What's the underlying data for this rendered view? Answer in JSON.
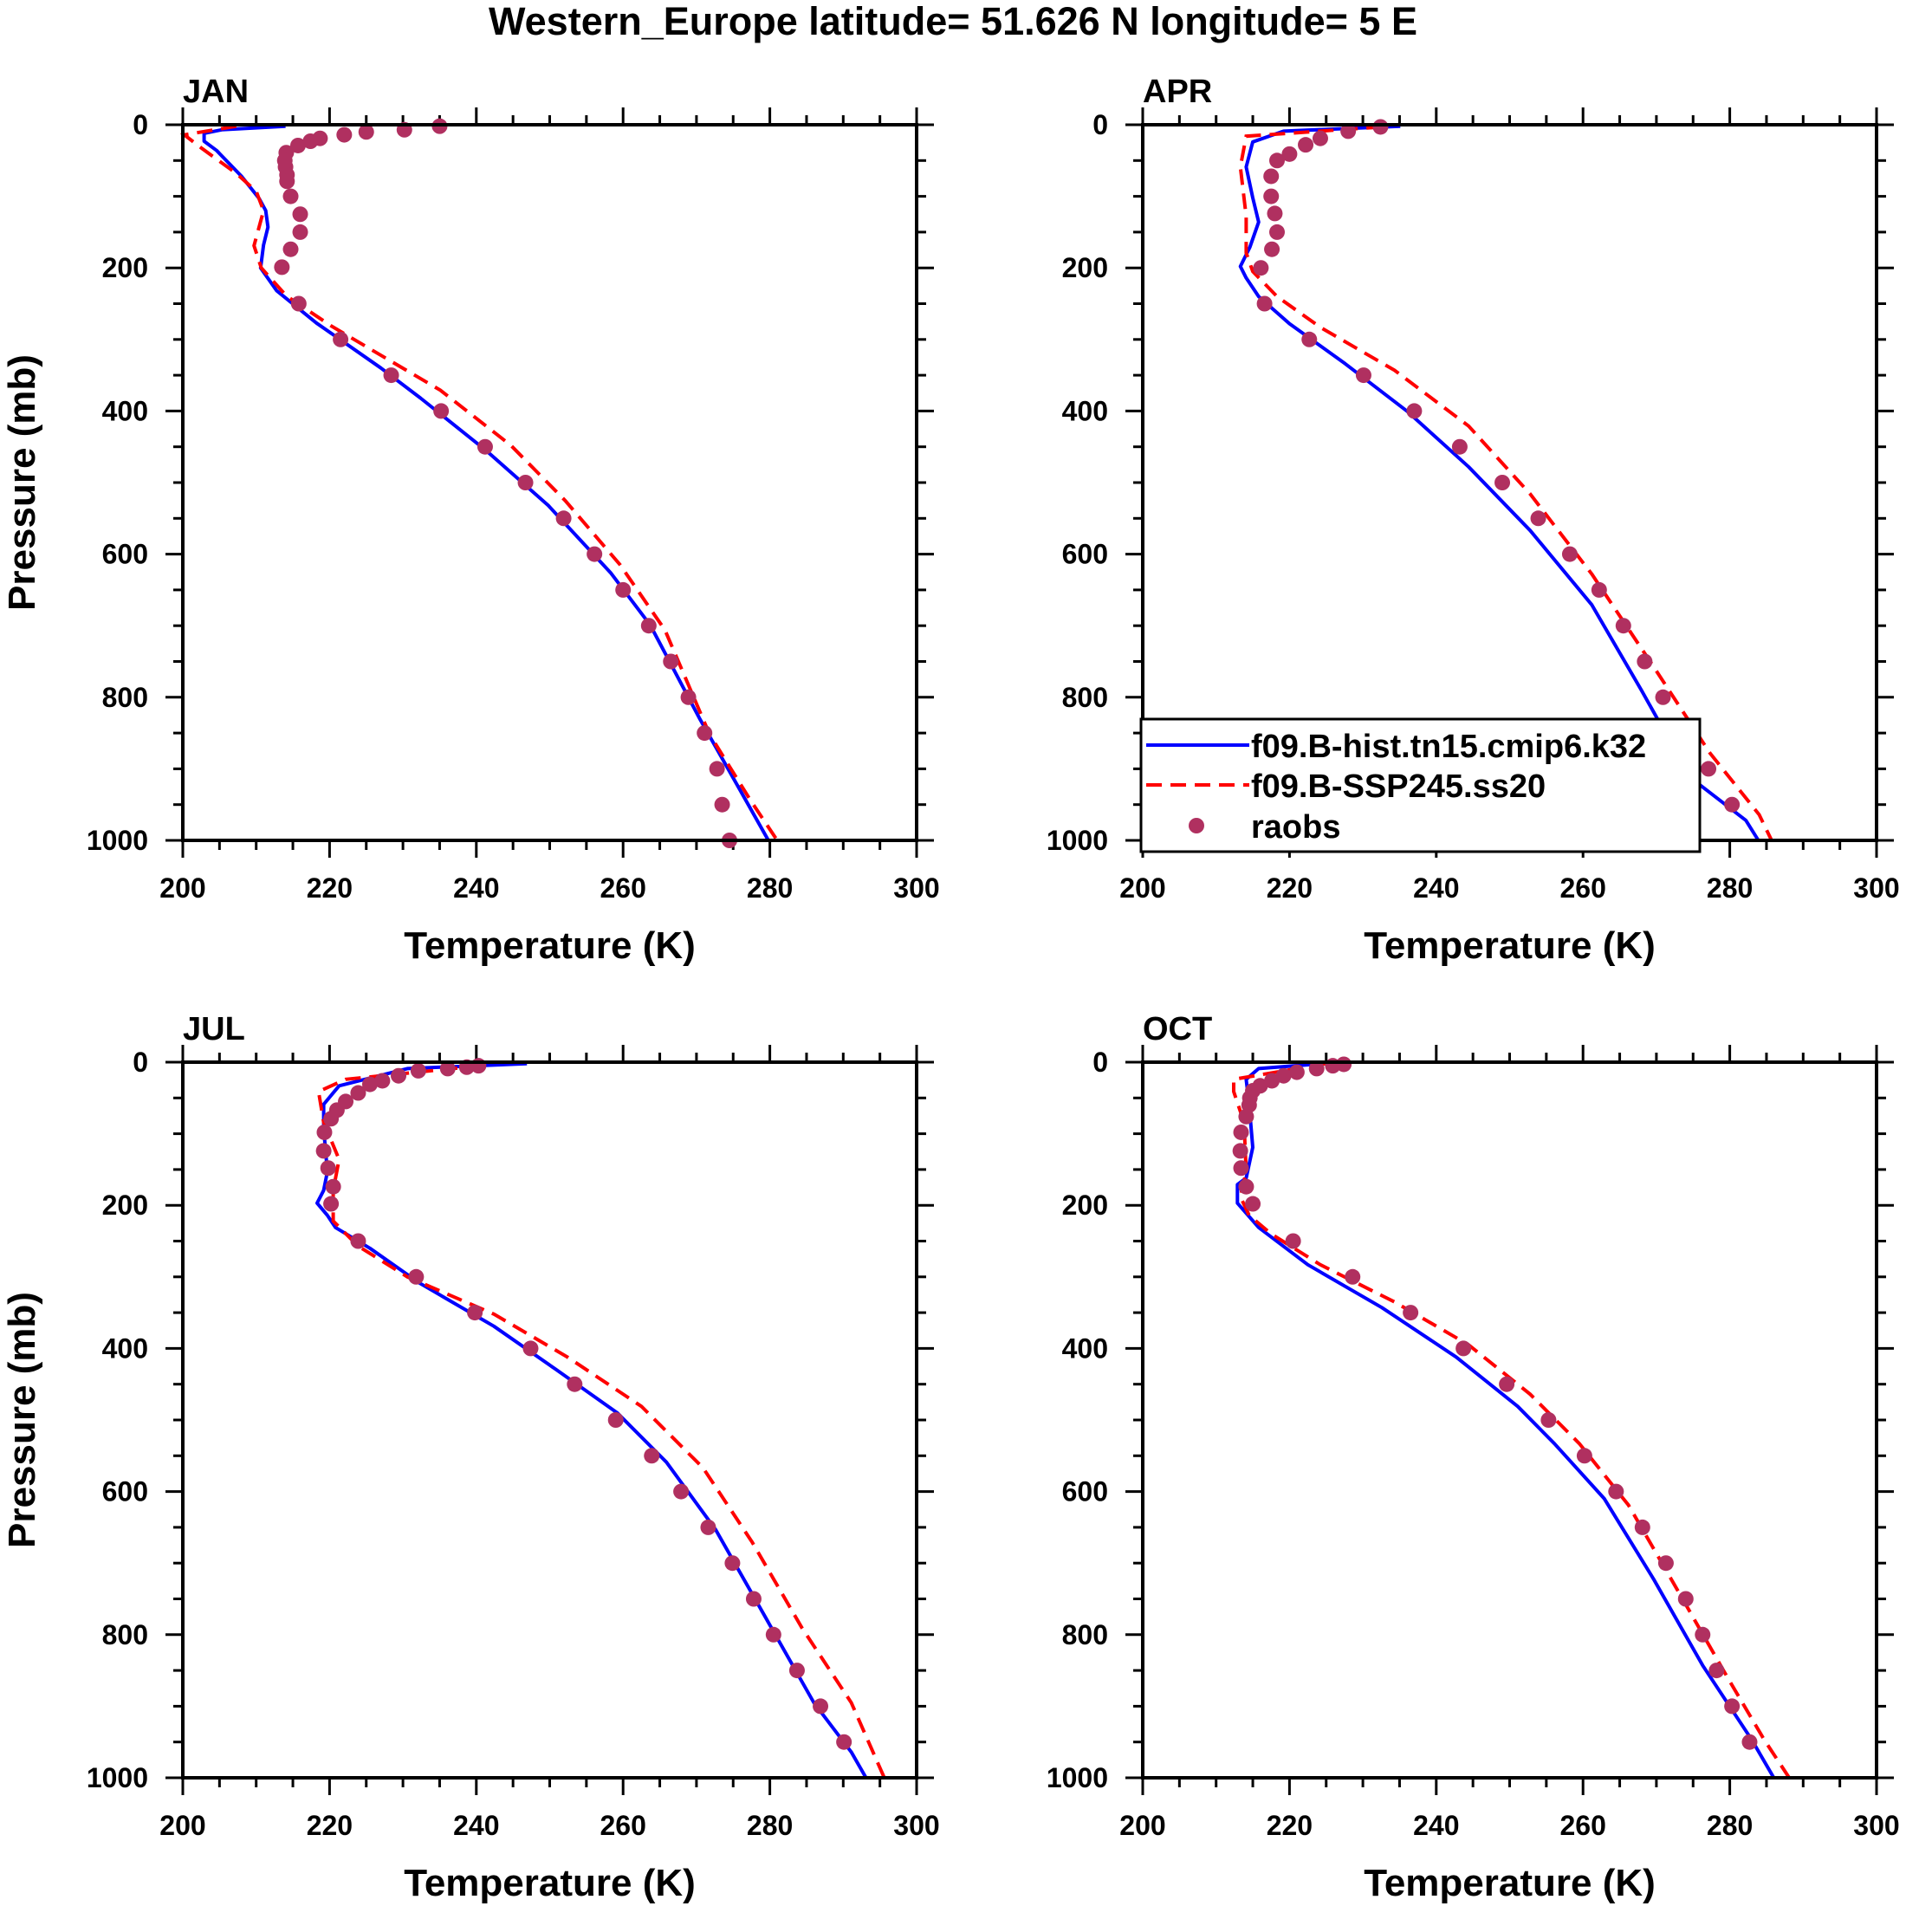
{
  "chart_data": {
    "type": "line",
    "title": "Western_Europe  latitude= 51.626 N longitude= 5 E",
    "xlabel": "Temperature (K)",
    "ylabel": "Pressure (mb)",
    "xlim": [
      200,
      300
    ],
    "ylim": [
      1000,
      0
    ],
    "xticks": [
      200,
      220,
      240,
      260,
      280,
      300
    ],
    "yticks": [
      0,
      200,
      400,
      600,
      800,
      1000
    ],
    "grid": false,
    "legend": {
      "placement": "lower-right of APR panel",
      "entries": [
        {
          "label": "f09.B-hist.tn15.cmip6.k32",
          "color": "#0000ff",
          "style": "solid"
        },
        {
          "label": "f09.B-SSP245.ss20",
          "color": "#ff0000",
          "style": "dashed"
        },
        {
          "label": "raobs",
          "color": "#b03060",
          "style": "marker"
        }
      ]
    },
    "panels": [
      {
        "name": "JAN",
        "hist": [
          [
            214,
            2
          ],
          [
            205.3,
            7
          ],
          [
            202.9,
            12
          ],
          [
            202.9,
            23
          ],
          [
            204.6,
            36
          ],
          [
            208,
            72
          ],
          [
            210.4,
            103
          ],
          [
            211.3,
            120
          ],
          [
            211.6,
            143
          ],
          [
            211,
            168
          ],
          [
            210.6,
            200
          ],
          [
            212.8,
            232
          ],
          [
            218.2,
            277
          ],
          [
            227,
            340
          ],
          [
            232.4,
            382
          ],
          [
            241.3,
            455
          ],
          [
            249.8,
            532
          ],
          [
            258.3,
            626
          ],
          [
            263.7,
            699
          ],
          [
            270.5,
            831
          ],
          [
            275.9,
            929
          ],
          [
            279.8,
            1000
          ]
        ],
        "ssp": [
          [
            207.3,
            2
          ],
          [
            200.2,
            14
          ],
          [
            202.6,
            33
          ],
          [
            207.3,
            68
          ],
          [
            210,
            93
          ],
          [
            211,
            120
          ],
          [
            209.7,
            169
          ],
          [
            210.7,
            200
          ],
          [
            214.1,
            239
          ],
          [
            220.2,
            281
          ],
          [
            228.3,
            330
          ],
          [
            235.1,
            371
          ],
          [
            244.7,
            448
          ],
          [
            252.1,
            525
          ],
          [
            259.6,
            615
          ],
          [
            265.7,
            706
          ],
          [
            271.8,
            852
          ],
          [
            277.3,
            943
          ],
          [
            281,
            1000
          ]
        ],
        "raobs": [
          [
            235,
            2
          ],
          [
            230.2,
            7
          ],
          [
            225,
            10
          ],
          [
            222,
            14
          ],
          [
            218.7,
            19
          ],
          [
            217.4,
            23
          ],
          [
            215.7,
            29
          ],
          [
            214.1,
            39
          ],
          [
            213.9,
            50
          ],
          [
            214,
            59
          ],
          [
            214.2,
            70
          ],
          [
            214.2,
            79
          ],
          [
            214.7,
            100
          ],
          [
            216,
            125
          ],
          [
            216,
            150
          ],
          [
            214.7,
            174
          ],
          [
            213.5,
            199
          ],
          [
            215.8,
            250
          ],
          [
            221.5,
            300
          ],
          [
            228.4,
            350
          ],
          [
            235.2,
            400
          ],
          [
            241.2,
            450
          ],
          [
            246.7,
            500
          ],
          [
            251.9,
            550
          ],
          [
            256.1,
            600
          ],
          [
            260,
            650
          ],
          [
            263.5,
            700
          ],
          [
            266.5,
            750
          ],
          [
            268.9,
            800
          ],
          [
            271.1,
            850
          ],
          [
            272.8,
            900
          ],
          [
            273.5,
            950
          ],
          [
            274.5,
            1000
          ]
        ]
      },
      {
        "name": "APR",
        "hist": [
          [
            235.1,
            2
          ],
          [
            219.2,
            9
          ],
          [
            215,
            24
          ],
          [
            214.1,
            59
          ],
          [
            215,
            102
          ],
          [
            215.8,
            136
          ],
          [
            214.6,
            171
          ],
          [
            213.3,
            198
          ],
          [
            214.1,
            214
          ],
          [
            215.8,
            240
          ],
          [
            220,
            278
          ],
          [
            227.6,
            334
          ],
          [
            236,
            400
          ],
          [
            244.4,
            478
          ],
          [
            252.8,
            567
          ],
          [
            261.2,
            671
          ],
          [
            268,
            791
          ],
          [
            274.6,
            912
          ],
          [
            282.2,
            972
          ],
          [
            283.9,
            1000
          ]
        ],
        "ssp": [
          [
            232.6,
            3
          ],
          [
            214.1,
            16
          ],
          [
            213.3,
            59
          ],
          [
            214.1,
            128
          ],
          [
            214.1,
            179
          ],
          [
            215,
            205
          ],
          [
            218.3,
            240
          ],
          [
            224.2,
            283
          ],
          [
            234.3,
            343
          ],
          [
            244.4,
            421
          ],
          [
            252.8,
            516
          ],
          [
            261.2,
            628
          ],
          [
            269.6,
            757
          ],
          [
            277.3,
            878
          ],
          [
            284,
            964
          ],
          [
            285.7,
            1000
          ]
        ],
        "raobs": [
          [
            232.4,
            3
          ],
          [
            228,
            9
          ],
          [
            224.2,
            19
          ],
          [
            222.2,
            28
          ],
          [
            220,
            41
          ],
          [
            218.3,
            50
          ],
          [
            217.5,
            72
          ],
          [
            217.5,
            100
          ],
          [
            218,
            124
          ],
          [
            218.3,
            150
          ],
          [
            217.6,
            174
          ],
          [
            216.1,
            200
          ],
          [
            216.6,
            250
          ],
          [
            222.7,
            300
          ],
          [
            230.1,
            350
          ],
          [
            237,
            400
          ],
          [
            243.2,
            450
          ],
          [
            249,
            500
          ],
          [
            253.9,
            550
          ],
          [
            258.2,
            600
          ],
          [
            262.2,
            650
          ],
          [
            265.5,
            700
          ],
          [
            268.4,
            750
          ],
          [
            270.9,
            800
          ],
          [
            273.4,
            850
          ],
          [
            277.1,
            900
          ],
          [
            280.3,
            950
          ]
        ]
      },
      {
        "name": "JUL",
        "hist": [
          [
            246.9,
            2
          ],
          [
            230.6,
            9
          ],
          [
            221.3,
            33
          ],
          [
            219.2,
            59
          ],
          [
            219.2,
            93
          ],
          [
            219.7,
            153
          ],
          [
            219.2,
            179
          ],
          [
            218.3,
            197
          ],
          [
            219.7,
            214
          ],
          [
            220.8,
            231
          ],
          [
            225.5,
            260
          ],
          [
            232.3,
            309
          ],
          [
            242.4,
            369
          ],
          [
            250.8,
            429
          ],
          [
            259.2,
            490
          ],
          [
            265.9,
            559
          ],
          [
            272.6,
            653
          ],
          [
            279.3,
            774
          ],
          [
            286,
            895
          ],
          [
            291.1,
            964
          ],
          [
            293.1,
            1000
          ]
        ],
        "ssp": [
          [
            240.7,
            5
          ],
          [
            222.2,
            24
          ],
          [
            218.5,
            41
          ],
          [
            219.2,
            84
          ],
          [
            221.3,
            136
          ],
          [
            220.5,
            179
          ],
          [
            220.5,
            222
          ],
          [
            223.9,
            257
          ],
          [
            230.6,
            300
          ],
          [
            242.4,
            352
          ],
          [
            252.4,
            412
          ],
          [
            262.5,
            481
          ],
          [
            270.9,
            567
          ],
          [
            277.6,
            671
          ],
          [
            284.4,
            791
          ],
          [
            291.1,
            895
          ],
          [
            295.6,
            1000
          ]
        ],
        "raobs": [
          [
            240.3,
            5
          ],
          [
            238.7,
            7
          ],
          [
            236.1,
            9
          ],
          [
            232.1,
            12
          ],
          [
            229.4,
            19
          ],
          [
            227.2,
            26
          ],
          [
            225.5,
            31
          ],
          [
            223.9,
            43
          ],
          [
            222.2,
            55
          ],
          [
            221,
            67
          ],
          [
            220.2,
            79
          ],
          [
            219.3,
            98
          ],
          [
            219.2,
            124
          ],
          [
            219.8,
            148
          ],
          [
            220.5,
            174
          ],
          [
            220.2,
            198
          ],
          [
            223.9,
            250
          ],
          [
            231.8,
            300
          ],
          [
            239.8,
            350
          ],
          [
            247.4,
            400
          ],
          [
            253.4,
            450
          ],
          [
            259,
            500
          ],
          [
            263.9,
            550
          ],
          [
            267.9,
            600
          ],
          [
            271.6,
            650
          ],
          [
            274.9,
            700
          ],
          [
            277.8,
            750
          ],
          [
            280.5,
            800
          ],
          [
            283.7,
            850
          ],
          [
            286.9,
            900
          ],
          [
            290.1,
            950
          ]
        ]
      },
      {
        "name": "OCT",
        "hist": [
          [
            224.5,
            2
          ],
          [
            215.8,
            9
          ],
          [
            214.1,
            24
          ],
          [
            214.5,
            59
          ],
          [
            215,
            119
          ],
          [
            214.1,
            162
          ],
          [
            212.9,
            171
          ],
          [
            212.9,
            197
          ],
          [
            215.8,
            231
          ],
          [
            222.5,
            283
          ],
          [
            232.6,
            343
          ],
          [
            242.7,
            412
          ],
          [
            251.1,
            481
          ],
          [
            256.1,
            533
          ],
          [
            262.9,
            610
          ],
          [
            269.6,
            722
          ],
          [
            276.3,
            843
          ],
          [
            283,
            947
          ],
          [
            286,
            1000
          ]
        ],
        "ssp": [
          [
            225,
            2
          ],
          [
            212.4,
            24
          ],
          [
            212.4,
            41
          ],
          [
            213.8,
            84
          ],
          [
            214.1,
            153
          ],
          [
            213.3,
            188
          ],
          [
            214.5,
            214
          ],
          [
            217.5,
            240
          ],
          [
            224.2,
            283
          ],
          [
            234.3,
            335
          ],
          [
            244.4,
            395
          ],
          [
            252.8,
            464
          ],
          [
            259.5,
            533
          ],
          [
            266.2,
            619
          ],
          [
            273,
            740
          ],
          [
            279.7,
            860
          ],
          [
            284.7,
            947
          ],
          [
            288.1,
            1000
          ]
        ],
        "raobs": [
          [
            227.4,
            3
          ],
          [
            225.9,
            5
          ],
          [
            223.7,
            9
          ],
          [
            221,
            14
          ],
          [
            219.2,
            19
          ],
          [
            217.6,
            26
          ],
          [
            216,
            33
          ],
          [
            215,
            40
          ],
          [
            214.6,
            50
          ],
          [
            214.5,
            60
          ],
          [
            214.1,
            76
          ],
          [
            213.4,
            98
          ],
          [
            213.3,
            124
          ],
          [
            213.4,
            148
          ],
          [
            214.1,
            174
          ],
          [
            215,
            198
          ],
          [
            220.5,
            250
          ],
          [
            228.6,
            300
          ],
          [
            236.5,
            350
          ],
          [
            243.7,
            400
          ],
          [
            249.6,
            450
          ],
          [
            255.3,
            500
          ],
          [
            260.2,
            550
          ],
          [
            264.5,
            600
          ],
          [
            268.1,
            650
          ],
          [
            271.3,
            700
          ],
          [
            274,
            750
          ],
          [
            276.3,
            800
          ],
          [
            278.2,
            850
          ],
          [
            280.3,
            900
          ],
          [
            282.7,
            950
          ]
        ]
      }
    ]
  }
}
